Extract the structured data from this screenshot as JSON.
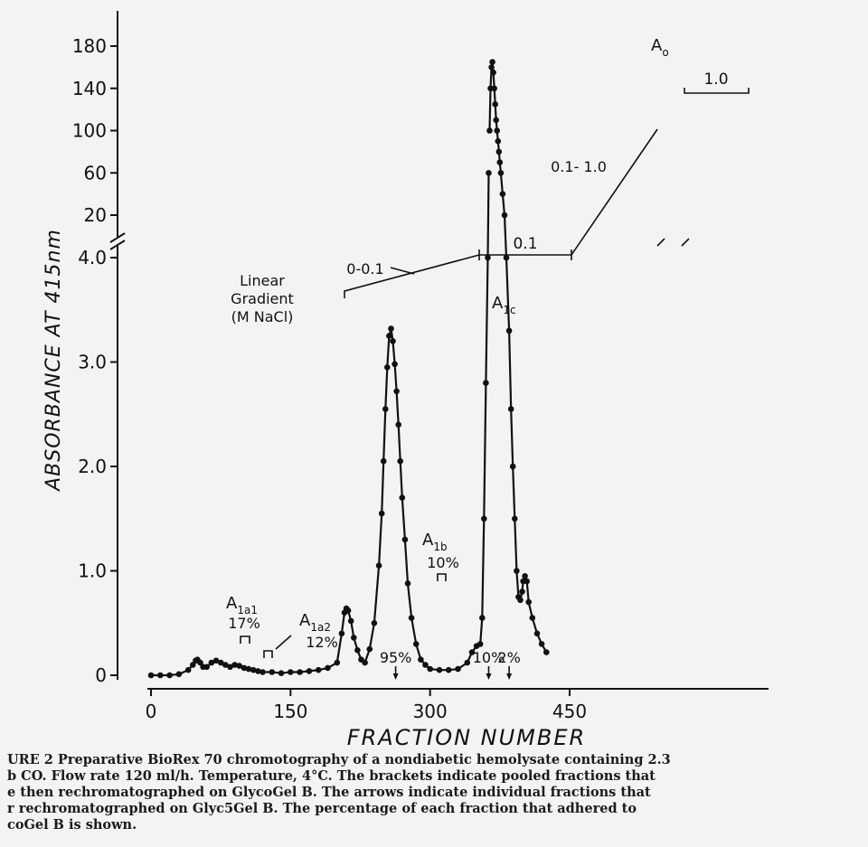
{
  "chart_data": {
    "type": "line",
    "xlabel": "FRACTION NUMBER",
    "ylabel": "ABSORBANCE AT 415nm",
    "xlim": [
      0,
      450
    ],
    "x_ticks": [
      "0",
      "150",
      "300",
      "450"
    ],
    "y_ticks_lower": [
      "0",
      "1.0",
      "2.0",
      "3.0",
      "4.0"
    ],
    "y_ticks_upper": [
      "20",
      "60",
      "100",
      "140",
      "180"
    ],
    "y_break": "lower scale 0–4.0, upper scale 20–180",
    "series": [
      {
        "x": [
          0,
          10,
          20,
          30,
          40,
          45,
          48,
          50,
          53,
          56,
          60,
          65,
          70,
          75,
          80,
          85,
          90,
          95,
          100,
          105,
          110,
          115,
          120,
          130,
          140,
          150,
          160,
          170,
          180,
          190,
          200,
          205,
          208,
          210,
          212,
          215,
          218,
          222,
          226,
          230,
          235,
          240,
          245,
          248,
          250,
          252,
          254,
          256,
          258,
          260,
          262,
          264,
          266,
          268,
          270,
          273,
          276,
          280,
          285,
          290,
          295,
          300,
          310,
          320,
          330,
          340,
          345,
          350,
          354,
          356,
          358,
          360,
          362,
          363,
          364,
          365,
          366,
          367,
          368,
          369,
          370,
          371,
          372,
          373,
          374,
          375,
          376,
          378,
          380,
          382,
          385,
          387,
          389,
          391,
          393,
          395,
          397,
          399,
          400,
          402,
          404,
          406,
          410,
          415,
          420,
          425
        ],
        "y": [
          0.0,
          0.0,
          0.0,
          0.01,
          0.05,
          0.1,
          0.14,
          0.15,
          0.12,
          0.08,
          0.08,
          0.12,
          0.14,
          0.12,
          0.1,
          0.08,
          0.1,
          0.09,
          0.07,
          0.06,
          0.05,
          0.04,
          0.03,
          0.03,
          0.02,
          0.03,
          0.03,
          0.04,
          0.05,
          0.07,
          0.12,
          0.4,
          0.6,
          0.64,
          0.62,
          0.52,
          0.36,
          0.24,
          0.15,
          0.12,
          0.25,
          0.5,
          1.05,
          1.55,
          2.05,
          2.55,
          2.95,
          3.25,
          3.32,
          3.2,
          2.98,
          2.72,
          2.4,
          2.05,
          1.7,
          1.3,
          0.88,
          0.55,
          0.3,
          0.15,
          0.1,
          0.06,
          0.05,
          0.05,
          0.06,
          0.12,
          0.22,
          0.28,
          0.3,
          0.55,
          1.5,
          2.8,
          4.0,
          60,
          100,
          140,
          160,
          165,
          155,
          140,
          125,
          110,
          100,
          90,
          80,
          70,
          60,
          40,
          20,
          4.0,
          3.3,
          2.55,
          2.0,
          1.5,
          1.0,
          0.75,
          0.72,
          0.8,
          0.9,
          0.95,
          0.9,
          0.7,
          0.55,
          0.4,
          0.3,
          0.22
        ]
      }
    ],
    "annotations": {
      "gradient_label": [
        "Linear",
        "Gradient",
        "(M NaCl)"
      ],
      "gradient_steps": [
        "0-0.1",
        "0.1",
        "0.1- 1.0",
        "1.0"
      ],
      "peaks": [
        {
          "name": "A",
          "sub": "1a1",
          "percent": "17%"
        },
        {
          "name": "A",
          "sub": "1a2",
          "percent": "12%"
        },
        {
          "name": "A",
          "sub": "1b",
          "percent": "10%"
        },
        {
          "name": "A",
          "sub": "1c",
          "percent": ""
        },
        {
          "name": "A",
          "sub": "o",
          "percent": ""
        }
      ],
      "arrows": [
        {
          "x": 263,
          "label": "95%"
        },
        {
          "x": 363,
          "label": "10%"
        },
        {
          "x": 385,
          "label": "2%"
        }
      ]
    }
  },
  "caption": [
    "URE 2  Preparative BioRex 70 chromotography of a nondiabetic hemolysate containing 2.3",
    "b CO. Flow rate 120 ml/h. Temperature, 4°C. The brackets indicate pooled fractions that",
    "e then rechromatographed on GlycoGel B. The arrows indicate individual fractions that",
    "r rechromatographed on Glyc5Gel B. The percentage of each fraction that adhered to",
    "coGel B is shown."
  ]
}
